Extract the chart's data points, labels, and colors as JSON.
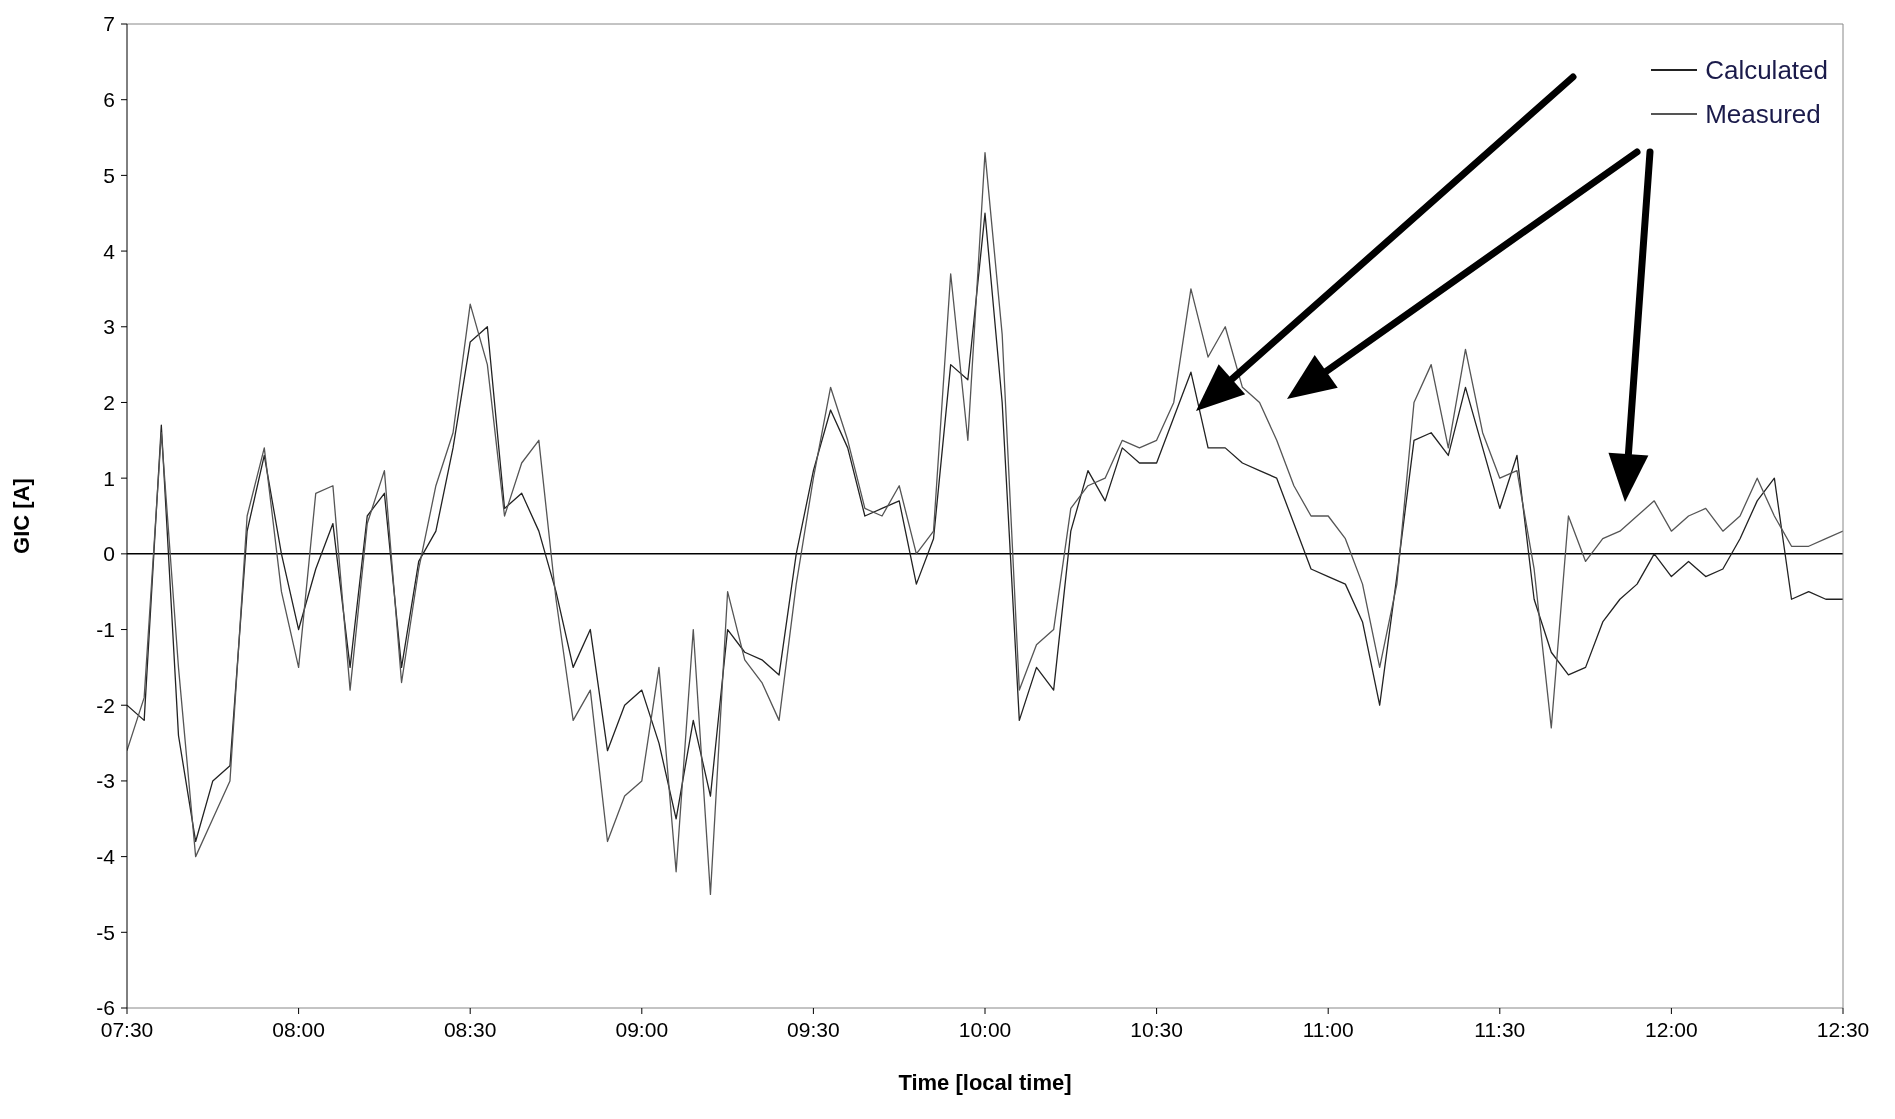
{
  "chart_data": {
    "type": "line",
    "xlabel": "Time [local time]",
    "ylabel": "GIC [A]",
    "x": [
      7.5,
      7.55,
      7.6,
      7.65,
      7.7,
      7.75,
      7.8,
      7.85,
      7.9,
      7.95,
      8,
      8.05,
      8.1,
      8.15,
      8.2,
      8.25,
      8.3,
      8.35,
      8.4,
      8.45,
      8.5,
      8.55,
      8.6,
      8.65,
      8.7,
      8.75,
      8.8,
      8.85,
      8.9,
      8.95,
      9,
      9.05,
      9.1,
      9.15,
      9.2,
      9.25,
      9.3,
      9.35,
      9.4,
      9.45,
      9.5,
      9.55,
      9.6,
      9.65,
      9.7,
      9.75,
      9.8,
      9.85,
      9.9,
      9.95,
      10,
      10.05,
      10.1,
      10.15,
      10.2,
      10.25,
      10.3,
      10.35,
      10.4,
      10.45,
      10.5,
      10.55,
      10.6,
      10.65,
      10.7,
      10.75,
      10.8,
      10.85,
      10.9,
      10.95,
      11,
      11.05,
      11.1,
      11.15,
      11.2,
      11.25,
      11.3,
      11.35,
      11.4,
      11.45,
      11.5,
      11.55,
      11.6,
      11.65,
      11.7,
      11.75,
      11.8,
      11.85,
      11.9,
      11.95,
      12,
      12.05,
      12.1,
      12.15,
      12.2,
      12.25,
      12.3,
      12.35,
      12.4,
      12.45,
      12.5
    ],
    "series": [
      {
        "name": "Calculated",
        "color": "#222222",
        "values": [
          -2.0,
          -2.2,
          1.7,
          -2.4,
          -3.8,
          -3.0,
          -2.8,
          0.3,
          1.3,
          0.0,
          -1.0,
          -0.2,
          0.4,
          -1.5,
          0.5,
          0.8,
          -1.5,
          -0.1,
          0.3,
          1.4,
          2.8,
          3.0,
          0.6,
          0.8,
          0.3,
          -0.5,
          -1.5,
          -1.0,
          -2.6,
          -2.0,
          -1.8,
          -2.5,
          -3.5,
          -2.2,
          -3.2,
          -1.0,
          -1.3,
          -1.4,
          -1.6,
          0.0,
          1.1,
          1.9,
          1.4,
          0.5,
          0.6,
          0.7,
          -0.4,
          0.2,
          2.5,
          2.3,
          4.5,
          2.0,
          -2.2,
          -1.5,
          -1.8,
          0.3,
          1.1,
          0.7,
          1.4,
          1.2,
          1.2,
          1.8,
          2.4,
          1.4,
          1.4,
          1.2,
          1.1,
          1.0,
          0.4,
          -0.2,
          -0.3,
          -0.4,
          -0.9,
          -2.0,
          -0.3,
          1.5,
          1.6,
          1.3,
          2.2,
          1.4,
          0.6,
          1.3,
          -0.6,
          -1.3,
          -1.6,
          -1.5,
          -0.9,
          -0.6,
          -0.4,
          0.0,
          -0.3,
          -0.1,
          -0.3,
          -0.2,
          0.2,
          0.7,
          1.0,
          -0.6,
          -0.5,
          -0.6,
          -0.6
        ]
      },
      {
        "name": "Measured",
        "color": "#555555",
        "values": [
          -2.6,
          -1.9,
          1.6,
          -1.5,
          -4.0,
          -3.5,
          -3.0,
          0.5,
          1.4,
          -0.5,
          -1.5,
          0.8,
          0.9,
          -1.8,
          0.4,
          1.1,
          -1.7,
          -0.2,
          0.9,
          1.6,
          3.3,
          2.5,
          0.5,
          1.2,
          1.5,
          -0.6,
          -2.2,
          -1.8,
          -3.8,
          -3.2,
          -3.0,
          -1.5,
          -4.2,
          -1.0,
          -4.5,
          -0.5,
          -1.4,
          -1.7,
          -2.2,
          -0.4,
          1.0,
          2.2,
          1.5,
          0.6,
          0.5,
          0.9,
          0.0,
          0.3,
          3.7,
          1.5,
          5.3,
          2.9,
          -1.8,
          -1.2,
          -1.0,
          0.6,
          0.9,
          1.0,
          1.5,
          1.4,
          1.5,
          2.0,
          3.5,
          2.6,
          3.0,
          2.2,
          2.0,
          1.5,
          0.9,
          0.5,
          0.5,
          0.2,
          -0.4,
          -1.5,
          -0.4,
          2.0,
          2.5,
          1.4,
          2.7,
          1.6,
          1.0,
          1.1,
          -0.2,
          -2.3,
          0.5,
          -0.1,
          0.2,
          0.3,
          0.5,
          0.7,
          0.3,
          0.5,
          0.6,
          0.3,
          0.5,
          1.0,
          0.5,
          0.1,
          0.1,
          0.2,
          0.3
        ]
      }
    ],
    "xlim": [
      7.5,
      12.5
    ],
    "xticks": [
      {
        "value": 7.5,
        "label": "07:30"
      },
      {
        "value": 8,
        "label": "08:00"
      },
      {
        "value": 8.5,
        "label": "08:30"
      },
      {
        "value": 9,
        "label": "09:00"
      },
      {
        "value": 9.5,
        "label": "09:30"
      },
      {
        "value": 10,
        "label": "10:00"
      },
      {
        "value": 10.5,
        "label": "10:30"
      },
      {
        "value": 11,
        "label": "11:00"
      },
      {
        "value": 11.5,
        "label": "11:30"
      },
      {
        "value": 12,
        "label": "12:00"
      },
      {
        "value": 12.5,
        "label": "12:30"
      }
    ],
    "ylim": [
      -6,
      7
    ],
    "yticks": [
      -6,
      -5,
      -4,
      -3,
      -2,
      -1,
      0,
      1,
      2,
      3,
      4,
      5,
      6,
      7
    ],
    "ref_lines": [
      {
        "axis": "y",
        "value": 0,
        "color": "#000000"
      }
    ],
    "grid": false,
    "legend": "top right",
    "marker": "none",
    "line_style": "solid"
  }
}
